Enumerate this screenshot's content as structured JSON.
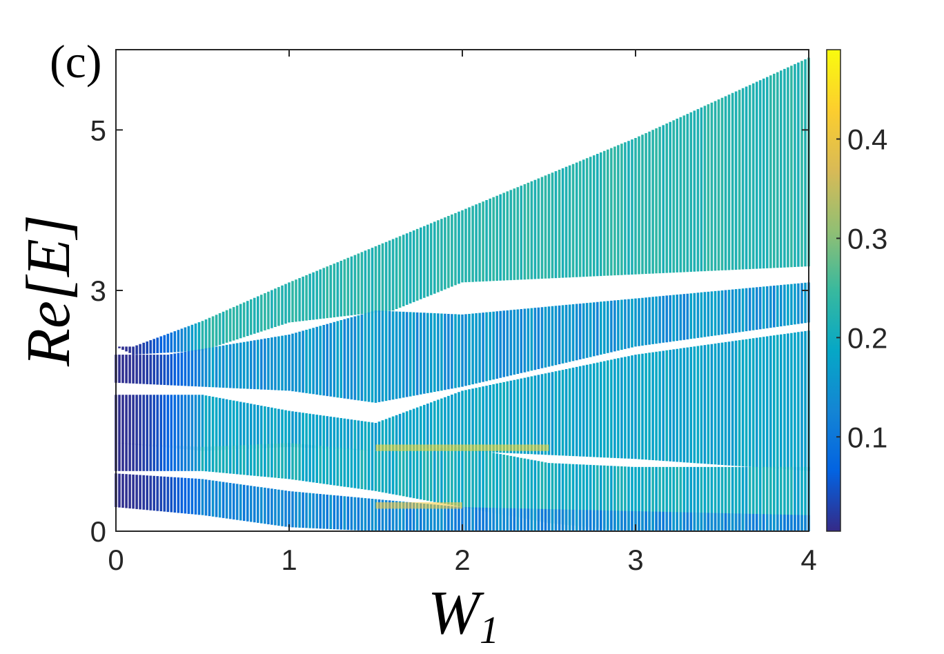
{
  "chart_data": {
    "type": "scatter",
    "panel_label": "(c)",
    "xlabel_main": "W",
    "xlabel_sub": "1",
    "ylabel": "Re[E]",
    "xlim": [
      0,
      4
    ],
    "ylim": [
      0,
      6
    ],
    "xticks": [
      0,
      1,
      2,
      3,
      4
    ],
    "yticks": [
      0,
      3,
      5
    ],
    "colorbar": {
      "colormap": "parula",
      "limits": [
        0.005,
        0.49
      ],
      "ticks": [
        0.1,
        0.2,
        0.3,
        0.4
      ],
      "tick_labels": [
        "0.1",
        "0.2",
        "0.3",
        "0.4"
      ]
    },
    "x_sampling": {
      "start": 0,
      "stop": 4,
      "step": 0.02
    },
    "bands": [
      {
        "top": [
          [
            0,
            2.3
          ],
          [
            0.1,
            2.3
          ],
          [
            0.5,
            2.62
          ],
          [
            1,
            3.1
          ],
          [
            2,
            4.0
          ],
          [
            3,
            4.9
          ],
          [
            4,
            5.9
          ]
        ],
        "bottom": [
          [
            0,
            2.3
          ],
          [
            0.1,
            2.2
          ],
          [
            0.5,
            2.25
          ],
          [
            1,
            2.6
          ],
          [
            1.6,
            2.75
          ],
          [
            2,
            3.1
          ],
          [
            3,
            3.2
          ],
          [
            4,
            3.3
          ]
        ],
        "color": [
          0.21,
          0.24
        ]
      },
      {
        "top": [
          [
            0,
            2.2
          ],
          [
            0.3,
            2.2
          ],
          [
            1,
            2.45
          ],
          [
            1.5,
            2.75
          ],
          [
            2,
            2.7
          ],
          [
            3,
            2.9
          ],
          [
            4,
            3.1
          ]
        ],
        "bottom": [
          [
            0,
            1.85
          ],
          [
            0.5,
            1.8
          ],
          [
            1,
            1.75
          ],
          [
            1.5,
            1.6
          ],
          [
            2,
            1.8
          ],
          [
            3,
            2.3
          ],
          [
            4,
            2.6
          ]
        ],
        "color": [
          0.12,
          0.18
        ]
      },
      {
        "top": [
          [
            0,
            1.7
          ],
          [
            0.5,
            1.7
          ],
          [
            1,
            1.5
          ],
          [
            1.5,
            1.35
          ],
          [
            2,
            1.75
          ],
          [
            3,
            2.2
          ],
          [
            4,
            2.5
          ]
        ],
        "bottom": [
          [
            0,
            1.1
          ],
          [
            0.5,
            1.0
          ],
          [
            1,
            1.05
          ],
          [
            1.5,
            1.0
          ],
          [
            2,
            1.0
          ],
          [
            3,
            0.9
          ],
          [
            4,
            0.75
          ]
        ],
        "color": [
          0.16,
          0.2
        ]
      },
      {
        "top": [
          [
            0,
            1.1
          ],
          [
            0.5,
            1.05
          ],
          [
            1,
            1.1
          ],
          [
            1.5,
            1.0
          ],
          [
            2,
            1.05
          ],
          [
            2.5,
            0.85
          ],
          [
            3,
            0.8
          ],
          [
            4,
            0.8
          ]
        ],
        "bottom": [
          [
            0,
            0.75
          ],
          [
            0.5,
            0.75
          ],
          [
            1,
            0.65
          ],
          [
            1.5,
            0.5
          ],
          [
            2,
            0.3
          ],
          [
            2.5,
            0.1
          ],
          [
            3,
            0
          ],
          [
            4,
            0
          ]
        ],
        "color": [
          0.17,
          0.22
        ]
      },
      {
        "top": [
          [
            0,
            0.72
          ],
          [
            0.5,
            0.65
          ],
          [
            1,
            0.5
          ],
          [
            1.5,
            0.4
          ],
          [
            2,
            0.3
          ],
          [
            3,
            0.25
          ],
          [
            4,
            0.2
          ]
        ],
        "bottom": [
          [
            0,
            0.3
          ],
          [
            0.5,
            0.2
          ],
          [
            1,
            0.05
          ],
          [
            1.5,
            0
          ],
          [
            4,
            0
          ]
        ],
        "color": [
          0.1,
          0.16
        ]
      }
    ],
    "dark_region": {
      "x_range": [
        0,
        0.5
      ],
      "color": 0.01
    },
    "highlights": [
      {
        "x": [
          1.5,
          2.5
        ],
        "y": [
          1.0,
          1.08
        ],
        "color": 0.44
      },
      {
        "x": [
          1.5,
          2.0
        ],
        "y": [
          0.28,
          0.36
        ],
        "color": 0.42
      }
    ]
  }
}
